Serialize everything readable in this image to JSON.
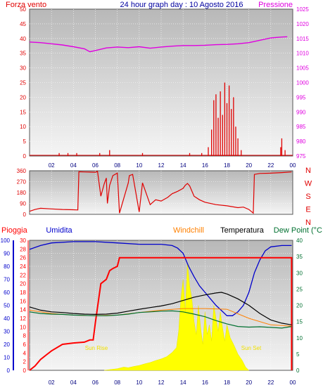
{
  "header": {
    "left": "Forza vento",
    "center": "24 hour graph day : 10 Agosto 2016",
    "right": "Pressione"
  },
  "colors": {
    "wind": "#e00000",
    "pressure": "#e000e0",
    "humidity": "#0000cc",
    "rain": "#ff0000",
    "windchill": "#ff8000",
    "temperature": "#000000",
    "dewpoint": "#007030",
    "sun": "#ffff00",
    "plot_bg_top": "#bdbdbd",
    "plot_bg_bottom": "#f4f4f4"
  },
  "chart_data": [
    {
      "type": "line",
      "name": "wind-pressure",
      "x_ticks": [
        "02",
        "04",
        "06",
        "08",
        "10",
        "12",
        "14",
        "16",
        "18",
        "20",
        "22",
        "00"
      ],
      "left_axis": {
        "label": "Forza vento",
        "ticks": [
          0,
          5,
          10,
          15,
          20,
          25,
          30,
          35,
          40,
          45,
          50
        ],
        "ylim": [
          0,
          50
        ]
      },
      "right_axis": {
        "label": "Pressione",
        "ticks": [
          975,
          980,
          985,
          990,
          995,
          1000,
          1005,
          1010,
          1015,
          1020,
          1025
        ],
        "ylim": [
          975,
          1025
        ]
      },
      "series": [
        {
          "name": "Pressione",
          "axis": "right",
          "x": [
            0,
            1,
            2,
            3,
            4,
            5,
            5.5,
            6,
            7,
            8,
            9,
            10,
            11,
            12,
            13,
            14,
            15,
            16,
            17,
            18,
            19,
            20,
            21,
            22,
            23,
            23.5
          ],
          "values": [
            1013.8,
            1013.6,
            1013.2,
            1012.8,
            1012.2,
            1011.5,
            1010.5,
            1010.9,
            1011.8,
            1012.1,
            1011.9,
            1012.2,
            1011.7,
            1012.1,
            1012.4,
            1012.6,
            1012.6,
            1012.7,
            1012.9,
            1013.0,
            1013.2,
            1013.6,
            1014.4,
            1015.2,
            1015.5,
            1015.6
          ]
        },
        {
          "name": "Forza vento",
          "axis": "left",
          "x": [
            2.7,
            3.5,
            4.3,
            6.4,
            7.3,
            10.3,
            14.6,
            15.7,
            16.3,
            16.6,
            16.8,
            17.0,
            17.2,
            17.4,
            17.6,
            17.8,
            18.0,
            18.2,
            18.4,
            18.6,
            18.8,
            19.0,
            19.3,
            22.9,
            23.0,
            23.3
          ],
          "values": [
            1,
            1,
            1,
            1,
            2,
            1,
            1,
            1,
            3,
            9,
            19,
            21,
            13,
            22,
            14,
            25,
            18,
            24,
            16,
            20,
            10,
            6,
            2,
            3,
            6,
            2
          ]
        }
      ]
    },
    {
      "type": "line",
      "name": "wind-direction",
      "left_axis": {
        "ticks": [
          0,
          90,
          180,
          270,
          360
        ],
        "ylim": [
          0,
          360
        ]
      },
      "right_axis": {
        "ticks": [
          "N",
          "W",
          "S",
          "E",
          "N"
        ]
      },
      "series": [
        {
          "name": "Direzione",
          "x": [
            0,
            0.5,
            1,
            2,
            3,
            4,
            4.4,
            4.5,
            5,
            6,
            6.2,
            6.5,
            6.8,
            7,
            7.1,
            7.3,
            7.6,
            8,
            8.2,
            9,
            9.1,
            9.4,
            10,
            10.3,
            11,
            11.5,
            12,
            12.6,
            13,
            13.5,
            14,
            14.2,
            14.4,
            14.6,
            15,
            15.5,
            16,
            17,
            18,
            19,
            19.5,
            20,
            20.4,
            20.5,
            21,
            22,
            23,
            23.9
          ],
          "values": [
            25,
            40,
            50,
            45,
            40,
            38,
            36,
            352,
            350,
            348,
            355,
            150,
            250,
            300,
            90,
            240,
            320,
            340,
            10,
            260,
            320,
            330,
            20,
            260,
            80,
            120,
            110,
            140,
            170,
            190,
            215,
            240,
            255,
            235,
            150,
            120,
            100,
            80,
            70,
            55,
            60,
            40,
            10,
            330,
            338,
            340,
            345,
            350
          ]
        }
      ]
    },
    {
      "type": "line",
      "name": "rain-humidity-temperature",
      "header": {
        "rain": "Pioggia",
        "humidity": "Umidita",
        "windchill": "Windchill",
        "temperature": "Temperatura",
        "dewpoint": "Dew Point (°C"
      },
      "annotations": [
        "Sun Rise",
        "Sun Set"
      ],
      "humidity_axis": {
        "ticks": [
          0,
          10,
          20,
          30,
          40,
          50,
          60,
          70,
          80,
          90,
          100
        ],
        "ylim": [
          0,
          100
        ]
      },
      "rain_axis": {
        "ticks": [
          0,
          2,
          4,
          6,
          8,
          10,
          12,
          14,
          16,
          18,
          20,
          22,
          24,
          26,
          28,
          30
        ],
        "ylim": [
          0,
          30
        ]
      },
      "temp_axis": {
        "ticks": [
          0,
          5,
          10,
          15,
          20,
          25,
          30,
          35,
          40
        ],
        "ylim": [
          0,
          40
        ]
      },
      "x_ticks": [
        "02",
        "04",
        "06",
        "08",
        "10",
        "12",
        "14",
        "16",
        "18",
        "20",
        "22",
        "00"
      ],
      "series": [
        {
          "name": "Umidita",
          "x": [
            0,
            1,
            2,
            4,
            6,
            8,
            10,
            12,
            13,
            13.5,
            14,
            14.5,
            15,
            15.5,
            16,
            16.5,
            17,
            17.5,
            18,
            18.5,
            19,
            19.5,
            20,
            20.5,
            21,
            21.5,
            22,
            23,
            23.9
          ],
          "values": [
            93,
            96,
            98,
            99,
            99,
            98,
            97,
            97,
            96,
            94,
            90,
            80,
            72,
            65,
            60,
            55,
            50,
            46,
            42,
            42,
            45,
            50,
            60,
            75,
            85,
            92,
            95,
            96,
            96
          ]
        },
        {
          "name": "Pioggia",
          "x": [
            0,
            0.5,
            1,
            1.5,
            2,
            3,
            4,
            5,
            5.5,
            5.8,
            6,
            6.5,
            7,
            7.3,
            7.6,
            8,
            8.2,
            9,
            10,
            12,
            14,
            16,
            18,
            20,
            22,
            23.9,
            23.9
          ],
          "values": [
            0,
            1,
            2.5,
            3.5,
            4.5,
            6,
            6.3,
            6.5,
            7,
            7,
            11,
            20,
            21,
            23,
            23.5,
            24,
            26,
            26,
            26,
            26,
            26,
            26,
            26,
            26,
            26,
            26,
            0
          ]
        },
        {
          "name": "Temperatura",
          "x": [
            0,
            1,
            2,
            3,
            4,
            5,
            6,
            7,
            8,
            9,
            10,
            11,
            12,
            13,
            14,
            15,
            16,
            17,
            17.5,
            18,
            19,
            20,
            21,
            22,
            23,
            23.9
          ],
          "values": [
            19.5,
            18.5,
            18,
            17.8,
            17.5,
            17.3,
            17.2,
            17.3,
            17.6,
            18.2,
            18.8,
            19.3,
            19.8,
            20.5,
            21.5,
            22.5,
            23.2,
            23.8,
            24,
            23.5,
            22,
            20,
            17.5,
            15.5,
            14.5,
            14
          ]
        },
        {
          "name": "Windchill",
          "x": [
            0,
            2,
            4,
            6,
            8,
            10,
            12,
            14,
            16,
            18,
            20,
            22,
            23.9
          ],
          "values": [
            18.5,
            17.5,
            17,
            16.8,
            17,
            17.8,
            18.5,
            19,
            19,
            18.8,
            16,
            14,
            13.6
          ]
        },
        {
          "name": "Dew Point",
          "x": [
            0,
            1,
            2,
            3,
            4,
            5,
            6,
            7,
            8,
            9,
            10,
            11,
            12,
            13,
            14,
            15,
            16,
            17,
            18,
            19,
            20,
            21,
            22,
            23,
            23.9
          ],
          "values": [
            18,
            17.5,
            17.3,
            17.2,
            17,
            16.9,
            16.8,
            16.8,
            17,
            17.3,
            17.8,
            18,
            18.2,
            18.3,
            18,
            17.3,
            16.5,
            15.3,
            14.3,
            13.5,
            13.3,
            13.4,
            13.2,
            13,
            13.5
          ]
        },
        {
          "name": "Radiazione solare",
          "x": [
            6.8,
            7.5,
            8,
            8.6,
            9,
            9.5,
            10,
            10.5,
            11,
            11.5,
            12,
            12.5,
            13,
            13.4,
            13.6,
            13.8,
            14,
            14.2,
            14.4,
            14.6,
            14.8,
            15,
            15.2,
            15.4,
            15.6,
            15.8,
            16,
            16.2,
            16.4,
            16.6,
            16.8,
            17,
            17.2,
            17.4,
            17.6,
            17.8,
            18,
            18.3,
            18.6,
            19,
            19.4,
            19.7,
            20
          ],
          "values": [
            0,
            0.3,
            0.5,
            1,
            0.8,
            1.2,
            1.5,
            2,
            2.4,
            3,
            3.5,
            4.2,
            5.5,
            7,
            12,
            22,
            28,
            18,
            33,
            26,
            22,
            15,
            11,
            20,
            13,
            8,
            18,
            11,
            14,
            9,
            20,
            16,
            12,
            18,
            13,
            9,
            14,
            10,
            8,
            5,
            3,
            1,
            0
          ]
        }
      ]
    }
  ]
}
